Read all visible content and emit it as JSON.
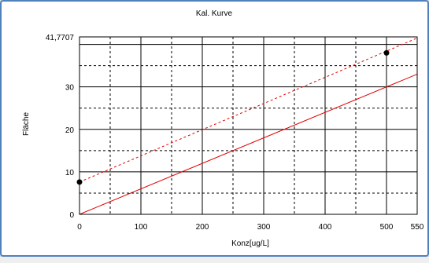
{
  "chart_data": {
    "type": "line",
    "title": "Kal. Kurve",
    "xlabel": "Konz[ug/L]",
    "ylabel": "Fläche",
    "xlim": [
      0,
      550
    ],
    "ylim": [
      0,
      41.7707
    ],
    "x_ticks": [
      0,
      100,
      200,
      300,
      400,
      500,
      550
    ],
    "x_tick_labels": [
      "0",
      "100",
      "200",
      "300",
      "400",
      "500",
      "550"
    ],
    "y_ticks": [
      0,
      10,
      20,
      30,
      41.7707
    ],
    "y_tick_labels": [
      "0",
      "10",
      "20",
      "30",
      "41,7707"
    ],
    "grid": true,
    "series": [
      {
        "style": "dashed",
        "color": "#e00000",
        "x": [
          0,
          550
        ],
        "y": [
          7.6,
          41.5
        ]
      },
      {
        "style": "solid",
        "color": "#e00000",
        "x": [
          0,
          550
        ],
        "y": [
          0,
          33.0
        ]
      },
      {
        "style": "points",
        "color": "#000000",
        "x": [
          0,
          500
        ],
        "y": [
          7.6,
          38.0
        ]
      }
    ]
  }
}
